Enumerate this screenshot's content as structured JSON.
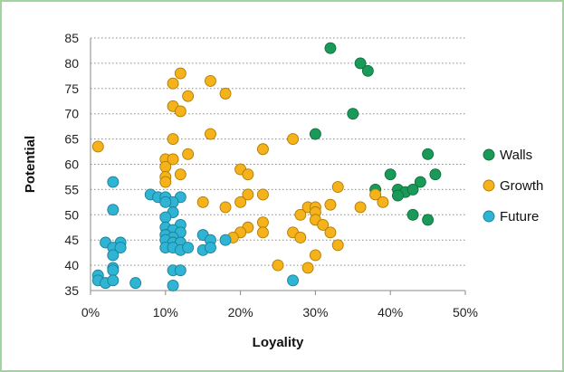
{
  "chart_data": {
    "type": "scatter",
    "title": "",
    "xlabel": "Loyality",
    "ylabel": "Potential",
    "xlim": [
      0,
      0.5
    ],
    "ylim": [
      35,
      85
    ],
    "xticks": [
      0,
      0.1,
      0.2,
      0.3,
      0.4,
      0.5
    ],
    "xtick_labels": [
      "0%",
      "10%",
      "20%",
      "30%",
      "40%",
      "50%"
    ],
    "yticks": [
      35,
      40,
      45,
      50,
      55,
      60,
      65,
      70,
      75,
      80,
      85
    ],
    "ytick_labels": [
      "35",
      "40",
      "45",
      "50",
      "55",
      "60",
      "65",
      "70",
      "75",
      "80",
      "85"
    ],
    "grid": "horizontal dotted",
    "legend_position": "right",
    "series": [
      {
        "name": "Walls",
        "color": "#1a9a58",
        "points": [
          [
            0.32,
            83
          ],
          [
            0.36,
            80
          ],
          [
            0.37,
            78.5
          ],
          [
            0.35,
            70
          ],
          [
            0.3,
            66
          ],
          [
            0.45,
            62
          ],
          [
            0.46,
            58
          ],
          [
            0.4,
            58
          ],
          [
            0.44,
            56.5
          ],
          [
            0.38,
            55
          ],
          [
            0.41,
            55
          ],
          [
            0.42,
            54.5
          ],
          [
            0.43,
            55
          ],
          [
            0.41,
            53.8
          ],
          [
            0.43,
            50
          ],
          [
            0.45,
            49
          ]
        ]
      },
      {
        "name": "Growth",
        "color": "#f5b21b",
        "points": [
          [
            0.01,
            63.5
          ],
          [
            0.12,
            78
          ],
          [
            0.11,
            76
          ],
          [
            0.16,
            76.5
          ],
          [
            0.18,
            74
          ],
          [
            0.13,
            73.5
          ],
          [
            0.11,
            71.5
          ],
          [
            0.12,
            70.5
          ],
          [
            0.16,
            66
          ],
          [
            0.27,
            65
          ],
          [
            0.11,
            65
          ],
          [
            0.23,
            63
          ],
          [
            0.13,
            62
          ],
          [
            0.1,
            61
          ],
          [
            0.11,
            61
          ],
          [
            0.1,
            59.5
          ],
          [
            0.2,
            59
          ],
          [
            0.21,
            58
          ],
          [
            0.12,
            58
          ],
          [
            0.1,
            57.5
          ],
          [
            0.1,
            56.5
          ],
          [
            0.33,
            55.5
          ],
          [
            0.38,
            54
          ],
          [
            0.21,
            54
          ],
          [
            0.23,
            54
          ],
          [
            0.39,
            52.5
          ],
          [
            0.32,
            52
          ],
          [
            0.36,
            51.5
          ],
          [
            0.15,
            52.5
          ],
          [
            0.2,
            52.5
          ],
          [
            0.29,
            51.5
          ],
          [
            0.3,
            51.5
          ],
          [
            0.18,
            51.5
          ],
          [
            0.3,
            50.5
          ],
          [
            0.28,
            50
          ],
          [
            0.3,
            49
          ],
          [
            0.23,
            48.5
          ],
          [
            0.31,
            48
          ],
          [
            0.21,
            47.5
          ],
          [
            0.2,
            46.5
          ],
          [
            0.23,
            46.5
          ],
          [
            0.27,
            46.5
          ],
          [
            0.32,
            46.5
          ],
          [
            0.19,
            45.5
          ],
          [
            0.28,
            45.5
          ],
          [
            0.33,
            44
          ],
          [
            0.3,
            42
          ],
          [
            0.25,
            40
          ],
          [
            0.29,
            39.5
          ]
        ]
      },
      {
        "name": "Future",
        "color": "#2fb4d4",
        "points": [
          [
            0.03,
            56.5
          ],
          [
            0.08,
            54
          ],
          [
            0.09,
            53.5
          ],
          [
            0.1,
            53.5
          ],
          [
            0.12,
            53.5
          ],
          [
            0.11,
            52.5
          ],
          [
            0.1,
            52.5
          ],
          [
            0.03,
            51
          ],
          [
            0.11,
            50.5
          ],
          [
            0.1,
            49.5
          ],
          [
            0.12,
            48
          ],
          [
            0.1,
            47.5
          ],
          [
            0.11,
            47
          ],
          [
            0.12,
            46.5
          ],
          [
            0.1,
            46
          ],
          [
            0.11,
            45.5
          ],
          [
            0.15,
            46
          ],
          [
            0.16,
            45
          ],
          [
            0.1,
            45
          ],
          [
            0.11,
            44.5
          ],
          [
            0.12,
            44.5
          ],
          [
            0.02,
            44.5
          ],
          [
            0.04,
            44.5
          ],
          [
            0.18,
            45
          ],
          [
            0.03,
            43.5
          ],
          [
            0.04,
            43.5
          ],
          [
            0.1,
            43.5
          ],
          [
            0.11,
            43.5
          ],
          [
            0.12,
            43
          ],
          [
            0.13,
            43.5
          ],
          [
            0.15,
            43
          ],
          [
            0.16,
            43.5
          ],
          [
            0.03,
            42
          ],
          [
            0.03,
            39.5
          ],
          [
            0.03,
            39
          ],
          [
            0.11,
            39
          ],
          [
            0.12,
            39
          ],
          [
            0.01,
            38
          ],
          [
            0.01,
            37
          ],
          [
            0.02,
            36.5
          ],
          [
            0.03,
            37
          ],
          [
            0.06,
            36.5
          ],
          [
            0.11,
            36
          ],
          [
            0.27,
            37
          ]
        ]
      }
    ]
  }
}
